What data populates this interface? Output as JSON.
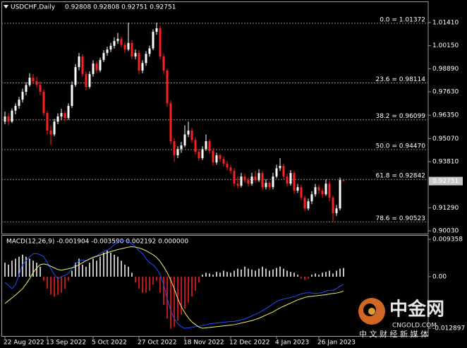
{
  "chart_data": [
    {
      "type": "candlestick",
      "title": "USDCHF,Daily",
      "subtitle": "0.92808 0.92808 0.92751 0.92751",
      "up_color": "#ffffff",
      "down_color": "#ff2020",
      "ylim": [
        0.8988,
        1.0195
      ],
      "yticks": [
        {
          "value": 1.0141,
          "label": "1.01410"
        },
        {
          "value": 1.0015,
          "label": "1.00150"
        },
        {
          "value": 0.9889,
          "label": "0.98890"
        },
        {
          "value": 0.9763,
          "label": "0.97630"
        },
        {
          "value": 0.9635,
          "label": "0.96350"
        },
        {
          "value": 0.9507,
          "label": "0.95070"
        },
        {
          "value": 0.9381,
          "label": "0.93810"
        },
        {
          "value": 0.9129,
          "label": "0.91290"
        },
        {
          "value": 0.9003,
          "label": "0.90030"
        }
      ],
      "price_label": {
        "value": 0.92751,
        "label": "0.92751"
      },
      "levels": [
        {
          "value": 1.01372,
          "label": "0.0 = 1.01372"
        },
        {
          "value": 0.98114,
          "label": "23.6 = 0.98114"
        },
        {
          "value": 0.96099,
          "label": "38.2 = 0.96099"
        },
        {
          "value": 0.9447,
          "label": "50.0 = 0.94470"
        },
        {
          "value": 0.92842,
          "label": "61.8 = 0.92842"
        },
        {
          "value": 0.90523,
          "label": "78.6 = 0.90523"
        }
      ],
      "categories": [
        "22 Aug 2022",
        null,
        null,
        null,
        null,
        null,
        null,
        null,
        null,
        null,
        null,
        null,
        "13 Sep 2022",
        null,
        null,
        null,
        null,
        null,
        null,
        null,
        null,
        null,
        null,
        null,
        null,
        "5 Oct 2022",
        null,
        null,
        null,
        null,
        null,
        null,
        null,
        null,
        null,
        null,
        null,
        null,
        "27 Oct 2022",
        null,
        null,
        null,
        null,
        null,
        null,
        null,
        null,
        null,
        null,
        null,
        null,
        "18 Nov 2022",
        null,
        null,
        null,
        null,
        null,
        null,
        null,
        null,
        null,
        null,
        null,
        null,
        "12 Dec 2022",
        null,
        null,
        null,
        null,
        null,
        null,
        null,
        null,
        null,
        null,
        null,
        null,
        "4 Jan 2023",
        null,
        null,
        null,
        null,
        null,
        null,
        null,
        null,
        null,
        null,
        null,
        "26 Jan 2023",
        null,
        null,
        null,
        null,
        null,
        null,
        null
      ],
      "ohlc": [
        [
          0.96,
          0.9655,
          0.9585,
          0.9628
        ],
        [
          0.9628,
          0.9645,
          0.958,
          0.96
        ],
        [
          0.96,
          0.9672,
          0.9592,
          0.966
        ],
        [
          0.966,
          0.97,
          0.964,
          0.9686
        ],
        [
          0.9686,
          0.9735,
          0.967,
          0.972
        ],
        [
          0.972,
          0.978,
          0.9705,
          0.9763
        ],
        [
          0.9763,
          0.9815,
          0.9745,
          0.98
        ],
        [
          0.98,
          0.9865,
          0.979,
          0.984
        ],
        [
          0.984,
          0.986,
          0.9805,
          0.982
        ],
        [
          0.982,
          0.9845,
          0.9785,
          0.9801
        ],
        [
          0.9801,
          0.982,
          0.9745,
          0.9763
        ],
        [
          0.9763,
          0.9775,
          0.963,
          0.9647
        ],
        [
          0.9647,
          0.966,
          0.953,
          0.9551
        ],
        [
          0.9551,
          0.958,
          0.9474,
          0.953
        ],
        [
          0.953,
          0.9615,
          0.952,
          0.96
        ],
        [
          0.96,
          0.9645,
          0.9585,
          0.9628
        ],
        [
          0.9628,
          0.967,
          0.961,
          0.9647
        ],
        [
          0.9647,
          0.966,
          0.96,
          0.962
        ],
        [
          0.962,
          0.97,
          0.961,
          0.9686
        ],
        [
          0.9686,
          0.982,
          0.9675,
          0.9801
        ],
        [
          0.9801,
          0.9915,
          0.979,
          0.9898
        ],
        [
          0.9898,
          0.9975,
          0.988,
          0.9956
        ],
        [
          0.9956,
          0.9968,
          0.9845,
          0.986
        ],
        [
          0.986,
          0.9875,
          0.977,
          0.979
        ],
        [
          0.979,
          0.9875,
          0.978,
          0.986
        ],
        [
          0.986,
          0.9935,
          0.9845,
          0.9917
        ],
        [
          0.9917,
          0.993,
          0.9865,
          0.988
        ],
        [
          0.988,
          0.995,
          0.987,
          0.9937
        ],
        [
          0.9937,
          0.999,
          0.9925,
          0.9975
        ],
        [
          0.9975,
          1.001,
          0.996,
          0.9994
        ],
        [
          0.9994,
          1.003,
          0.998,
          1.0014
        ],
        [
          1.0014,
          1.006,
          1.0,
          1.004
        ],
        [
          1.004,
          1.0085,
          1.0025,
          1.0052
        ],
        [
          1.0052,
          1.0065,
          1.0005,
          1.002
        ],
        [
          1.002,
          1.0035,
          0.9975,
          0.9994
        ],
        [
          0.9994,
          1.0141,
          0.9985,
          1.003
        ],
        [
          1.003,
          1.0045,
          0.994,
          0.9956
        ],
        [
          0.9956,
          0.9995,
          0.994,
          0.9975
        ],
        [
          0.9975,
          0.999,
          0.986,
          0.9879
        ],
        [
          0.9879,
          0.9935,
          0.9865,
          0.992
        ],
        [
          0.992,
          0.9985,
          0.9905,
          0.997
        ],
        [
          0.997,
          1.0015,
          0.9955,
          1.0
        ],
        [
          1.0,
          1.0105,
          0.999,
          1.0091
        ],
        [
          1.0091,
          1.0141,
          1.0075,
          1.011
        ],
        [
          1.011,
          1.0125,
          0.994,
          0.9956
        ],
        [
          0.9956,
          0.997,
          0.986,
          0.9879
        ],
        [
          0.9879,
          0.989,
          0.968,
          0.97
        ],
        [
          0.97,
          0.9715,
          0.9475,
          0.9493
        ],
        [
          0.9493,
          0.951,
          0.938,
          0.9416
        ],
        [
          0.9416,
          0.9465,
          0.94,
          0.945
        ],
        [
          0.945,
          0.949,
          0.943,
          0.947
        ],
        [
          0.947,
          0.958,
          0.946,
          0.953
        ],
        [
          0.953,
          0.96,
          0.9515,
          0.9551
        ],
        [
          0.9551,
          0.9565,
          0.9485,
          0.95
        ],
        [
          0.95,
          0.9515,
          0.942,
          0.9435
        ],
        [
          0.9435,
          0.945,
          0.9385,
          0.94
        ],
        [
          0.94,
          0.9465,
          0.939,
          0.945
        ],
        [
          0.945,
          0.953,
          0.944,
          0.9493
        ],
        [
          0.9493,
          0.9505,
          0.9425,
          0.944
        ],
        [
          0.944,
          0.9455,
          0.936,
          0.9377
        ],
        [
          0.9377,
          0.943,
          0.9365,
          0.9416
        ],
        [
          0.9416,
          0.9425,
          0.938,
          0.9396
        ],
        [
          0.9396,
          0.941,
          0.9355,
          0.937
        ],
        [
          0.937,
          0.9385,
          0.9335,
          0.935
        ],
        [
          0.935,
          0.9365,
          0.9315,
          0.933
        ],
        [
          0.933,
          0.9345,
          0.9245,
          0.9261
        ],
        [
          0.9261,
          0.93,
          0.9235,
          0.925
        ],
        [
          0.925,
          0.932,
          0.924,
          0.93
        ],
        [
          0.93,
          0.9315,
          0.9265,
          0.928
        ],
        [
          0.928,
          0.9295,
          0.9245,
          0.9261
        ],
        [
          0.9261,
          0.932,
          0.925,
          0.93
        ],
        [
          0.93,
          0.933,
          0.9265,
          0.928
        ],
        [
          0.928,
          0.934,
          0.927,
          0.9319
        ],
        [
          0.9319,
          0.933,
          0.9225,
          0.9242
        ],
        [
          0.9242,
          0.9285,
          0.923,
          0.9265
        ],
        [
          0.9265,
          0.9275,
          0.9225,
          0.9242
        ],
        [
          0.9242,
          0.932,
          0.923,
          0.93
        ],
        [
          0.93,
          0.9365,
          0.929,
          0.9345
        ],
        [
          0.9345,
          0.94,
          0.933,
          0.9358
        ],
        [
          0.9358,
          0.937,
          0.9285,
          0.93
        ],
        [
          0.93,
          0.9315,
          0.9245,
          0.9261
        ],
        [
          0.9261,
          0.9335,
          0.925,
          0.9319
        ],
        [
          0.9319,
          0.933,
          0.9205,
          0.9223
        ],
        [
          0.9223,
          0.926,
          0.921,
          0.9242
        ],
        [
          0.9242,
          0.9255,
          0.917,
          0.9184
        ],
        [
          0.9184,
          0.9195,
          0.911,
          0.9126
        ],
        [
          0.9126,
          0.918,
          0.9115,
          0.9165
        ],
        [
          0.9165,
          0.922,
          0.915,
          0.9203
        ],
        [
          0.9203,
          0.926,
          0.919,
          0.9242
        ],
        [
          0.9242,
          0.9255,
          0.9205,
          0.9223
        ],
        [
          0.9223,
          0.9235,
          0.9185,
          0.9203
        ],
        [
          0.9203,
          0.9285,
          0.9195,
          0.9261
        ],
        [
          0.9261,
          0.9275,
          0.9165,
          0.9184
        ],
        [
          0.9184,
          0.9195,
          0.9053,
          0.91
        ],
        [
          0.91,
          0.9145,
          0.9085,
          0.9126
        ],
        [
          0.9126,
          0.9295,
          0.9115,
          0.9281
        ],
        [
          0.92808,
          0.92808,
          0.92751,
          0.92751
        ]
      ]
    },
    {
      "type": "macd",
      "title": "MACD(12,26,9) -0.001904 -0.003590 0.002192 0.000000",
      "ylim": [
        -0.01466,
        0.01006
      ],
      "yticks": [
        0.009358,
        {
          "value": 0,
          "label": "0.00"
        },
        -0.012897
      ],
      "series": [
        {
          "type": "bar",
          "color": "#ffffff",
          "negative_color": "#ff2020",
          "values": [
            0.0035,
            0.003,
            0.004,
            0.0045,
            0.005,
            0.0055,
            0.005,
            0.0045,
            0.004,
            0.0035,
            0.0025,
            -0.001,
            -0.003,
            -0.0045,
            -0.005,
            -0.0045,
            -0.004,
            -0.003,
            -0.001,
            0.0015,
            0.0035,
            0.0045,
            0.003,
            0.0025,
            0.0035,
            0.0045,
            0.004,
            0.005,
            0.006,
            0.0065,
            0.006,
            0.0055,
            0.005,
            0.004,
            0.003,
            0.0025,
            0.001,
            -0.0015,
            -0.003,
            -0.004,
            -0.004,
            -0.0035,
            -0.002,
            -0.001,
            -0.004,
            -0.007,
            -0.0105,
            -0.013,
            -0.0125,
            -0.011,
            -0.0095,
            -0.008,
            -0.0065,
            -0.005,
            -0.0035,
            -0.0015,
            0.0005,
            0.001,
            0.0008,
            0.0005,
            0.0012,
            0.001,
            0.0015,
            0.0012,
            0.001,
            0.0015,
            0.002,
            0.0018,
            0.0025,
            0.002,
            0.0018,
            0.0015,
            0.002,
            0.0025,
            0.002,
            0.0015,
            0.0018,
            0.0022,
            0.0025,
            0.002,
            0.0015,
            0.0012,
            0.001,
            0.0005,
            -0.0005,
            -0.0008,
            -0.0005,
            0.0005,
            0.0008,
            0.0005,
            0.001,
            0.0012,
            0.0015,
            0.0008,
            0.0015,
            0.002,
            0.002192
          ]
        },
        {
          "type": "line",
          "color": "#2050ff",
          "values": [
            -0.0014,
            -0.0022,
            -0.003,
            -0.002,
            0.0005,
            0.003,
            0.004,
            0.005,
            0.0057,
            0.0058,
            0.0055,
            0.005,
            0.0035,
            0.002,
            0.0005,
            -0.0005,
            0.0,
            0.0003,
            0.0008,
            0.002,
            0.0032,
            0.0039,
            0.0042,
            0.004,
            0.0045,
            0.005,
            0.0052,
            0.0058,
            0.0063,
            0.0066,
            0.0072,
            0.008,
            0.0088,
            0.0092,
            0.009,
            0.0088,
            0.0082,
            0.0075,
            0.0065,
            0.0058,
            0.0045,
            0.0035,
            0.003,
            0.002,
            0.0005,
            -0.002,
            -0.0055,
            -0.0085,
            -0.0105,
            -0.0118,
            -0.0125,
            -0.0129,
            -0.0128,
            -0.0127,
            -0.0125,
            -0.0124,
            -0.0122,
            -0.012,
            -0.0118,
            -0.0117,
            -0.0116,
            -0.0115,
            -0.0114,
            -0.0113,
            -0.0112,
            -0.0112,
            -0.011,
            -0.0108,
            -0.0106,
            -0.0102,
            -0.0098,
            -0.0094,
            -0.009,
            -0.0085,
            -0.008,
            -0.0074,
            -0.0068,
            -0.0062,
            -0.0058,
            -0.0056,
            -0.0054,
            -0.0052,
            -0.005,
            -0.0046,
            -0.0043,
            -0.0041,
            -0.004,
            -0.0041,
            -0.0042,
            -0.0041,
            -0.004,
            -0.0036,
            -0.0034,
            -0.0034,
            -0.003,
            -0.0024,
            -0.001904
          ]
        },
        {
          "type": "line",
          "color": "#f2f066",
          "values": [
            -0.0067,
            -0.006,
            -0.0053,
            -0.0046,
            -0.0038,
            -0.003,
            -0.0018,
            -0.0005,
            0.001,
            0.0022,
            0.003,
            0.0032,
            0.003,
            0.0026,
            0.0022,
            0.0018,
            0.0016,
            0.0018,
            0.002,
            0.0022,
            0.0025,
            0.003,
            0.0035,
            0.004,
            0.0044,
            0.0048,
            0.0051,
            0.0054,
            0.0057,
            0.006,
            0.0063,
            0.0065,
            0.0068,
            0.007,
            0.0072,
            0.0074,
            0.0075,
            0.0074,
            0.0072,
            0.0069,
            0.0065,
            0.006,
            0.0055,
            0.0048,
            0.0038,
            0.0025,
            0.001,
            -0.0008,
            -0.003,
            -0.0055,
            -0.0075,
            -0.009,
            -0.0103,
            -0.0113,
            -0.012,
            -0.0126,
            -0.0129,
            -0.0128,
            -0.0127,
            -0.0126,
            -0.0125,
            -0.0124,
            -0.0123,
            -0.0122,
            -0.0121,
            -0.012,
            -0.0118,
            -0.0116,
            -0.0114,
            -0.0112,
            -0.011,
            -0.0107,
            -0.0104,
            -0.01,
            -0.0096,
            -0.0092,
            -0.0088,
            -0.0083,
            -0.0078,
            -0.0074,
            -0.007,
            -0.0066,
            -0.0062,
            -0.0058,
            -0.0055,
            -0.0052,
            -0.005,
            -0.0049,
            -0.0048,
            -0.0047,
            -0.0046,
            -0.0045,
            -0.0043,
            -0.0042,
            -0.0041,
            -0.0039,
            -0.00359
          ]
        }
      ]
    }
  ],
  "watermark": {
    "brand": "中金网",
    "site": "CNGOLD.COM",
    "slogan": "中 文 财 经 新 媒 体"
  }
}
